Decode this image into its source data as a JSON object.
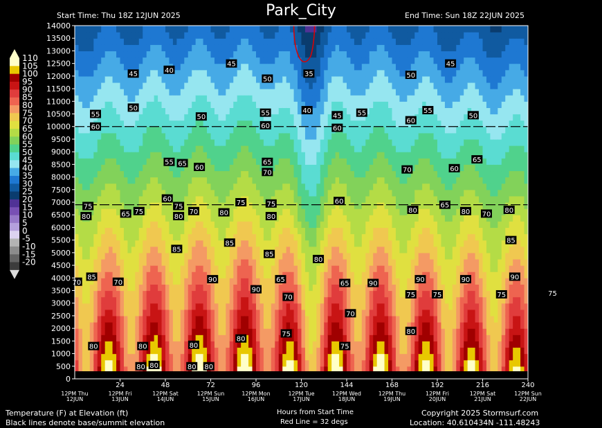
{
  "chart_data": {
    "type": "heatmap",
    "title": "Park_City",
    "start_time": "Start Time: Thu 18Z 12JUN 2025",
    "end_time": "End Time: Sun 18Z 22JUN 2025",
    "xlabel": "Hours from Start Time",
    "ylabel": "Temperature (F) at Elevation (ft)",
    "note_base": "Black lines denote base/summit elevation",
    "note_redline": "Red Line = 32 degs",
    "copyright": "Copyright 2025 Stormsurf.com",
    "location": "Location: 40.610434N   -111.48243",
    "xlim": [
      0,
      240
    ],
    "ylim": [
      0,
      14000
    ],
    "x_ticks": [
      24,
      48,
      72,
      96,
      120,
      144,
      168,
      192,
      216,
      240
    ],
    "y_ticks": [
      0,
      500,
      1000,
      1500,
      2000,
      2500,
      3000,
      3500,
      4000,
      4500,
      5000,
      5500,
      6000,
      6500,
      7000,
      7500,
      8000,
      8500,
      9000,
      9500,
      10000,
      10500,
      11000,
      11500,
      12000,
      12500,
      13000,
      13500,
      14000
    ],
    "day_labels": [
      {
        "x": 0,
        "l1": "12PM Thu",
        "l2": "12JUN"
      },
      {
        "x": 24,
        "l1": "12PM Fri",
        "l2": "13JUN"
      },
      {
        "x": 48,
        "l1": "12PM Sat",
        "l2": "14JUN"
      },
      {
        "x": 72,
        "l1": "12PM Sun",
        "l2": "15JUN"
      },
      {
        "x": 96,
        "l1": "12PM Mon",
        "l2": "16JUN"
      },
      {
        "x": 120,
        "l1": "12PM Tue",
        "l2": "17JUN"
      },
      {
        "x": 144,
        "l1": "12PM Wed",
        "l2": "18JUN"
      },
      {
        "x": 168,
        "l1": "12PM Thu",
        "l2": "19JUN"
      },
      {
        "x": 192,
        "l1": "12PM Fri",
        "l2": "20JUN"
      },
      {
        "x": 216,
        "l1": "12PM Sat",
        "l2": "21JUN"
      },
      {
        "x": 240,
        "l1": "12PM Sun",
        "l2": "22JUN"
      }
    ],
    "base_elevation": 6900,
    "summit_elevation": 10000,
    "colorbar": [
      {
        "label": "110",
        "color": "#ffffc8"
      },
      {
        "label": "105",
        "color": "#e8c800"
      },
      {
        "label": "100",
        "color": "#a00000"
      },
      {
        "label": "95",
        "color": "#c81414"
      },
      {
        "label": "90",
        "color": "#e03c3c"
      },
      {
        "label": "85",
        "color": "#ee6450"
      },
      {
        "label": "80",
        "color": "#f49a64"
      },
      {
        "label": "75",
        "color": "#f0c850"
      },
      {
        "label": "70",
        "color": "#e0e040"
      },
      {
        "label": "65",
        "color": "#b4dc46"
      },
      {
        "label": "60",
        "color": "#82d25a"
      },
      {
        "label": "55",
        "color": "#50d28c"
      },
      {
        "label": "50",
        "color": "#5adcd2"
      },
      {
        "label": "45",
        "color": "#96e6f0"
      },
      {
        "label": "40",
        "color": "#46aae6"
      },
      {
        "label": "35",
        "color": "#1e78d2"
      },
      {
        "label": "30",
        "color": "#105aa0"
      },
      {
        "label": "25",
        "color": "#0a3c6e"
      },
      {
        "label": "20",
        "color": "#503296"
      },
      {
        "label": "15",
        "color": "#7850b4"
      },
      {
        "label": "10",
        "color": "#9678c8"
      },
      {
        "label": "5",
        "color": "#b4a0dc"
      },
      {
        "label": "0",
        "color": "#dcd2f0"
      },
      {
        "label": "-5",
        "color": "#b4b4b4"
      },
      {
        "label": "-10",
        "color": "#8c8c8c"
      },
      {
        "label": "-15",
        "color": "#646464"
      },
      {
        "label": "-20",
        "color": "#3c3c3c"
      }
    ],
    "contour_labels": [
      {
        "x": 35,
        "y": 500,
        "v": "80"
      },
      {
        "x": 1,
        "y": 3850,
        "v": "70"
      },
      {
        "x": 9,
        "y": 4050,
        "v": "85"
      },
      {
        "x": 23,
        "y": 3850,
        "v": "70"
      },
      {
        "x": 62,
        "y": 500,
        "v": "80"
      },
      {
        "x": 71,
        "y": 500,
        "v": "80"
      },
      {
        "x": 10,
        "y": 1300,
        "v": "80"
      },
      {
        "x": 36,
        "y": 1300,
        "v": "80"
      },
      {
        "x": 42,
        "y": 550,
        "v": "80"
      },
      {
        "x": 63,
        "y": 1350,
        "v": "80"
      },
      {
        "x": 88,
        "y": 1600,
        "v": "80"
      },
      {
        "x": 112,
        "y": 1800,
        "v": "75"
      },
      {
        "x": 143,
        "y": 1300,
        "v": "75"
      },
      {
        "x": 178,
        "y": 1900,
        "v": "80"
      },
      {
        "x": 146,
        "y": 2600,
        "v": "70"
      },
      {
        "x": 113,
        "y": 3250,
        "v": "70"
      },
      {
        "x": 178,
        "y": 3350,
        "v": "75"
      },
      {
        "x": 192,
        "y": 3350,
        "v": "75"
      },
      {
        "x": 226,
        "y": 3350,
        "v": "75"
      },
      {
        "x": 253,
        "y": 3400,
        "v": "75"
      },
      {
        "x": 109,
        "y": 3950,
        "v": "65"
      },
      {
        "x": 143,
        "y": 3800,
        "v": "65"
      },
      {
        "x": 158,
        "y": 3800,
        "v": "90"
      },
      {
        "x": 183,
        "y": 3950,
        "v": "90"
      },
      {
        "x": 207,
        "y": 3950,
        "v": "90"
      },
      {
        "x": 233,
        "y": 4050,
        "v": "90"
      },
      {
        "x": 96,
        "y": 3550,
        "v": "90"
      },
      {
        "x": 73,
        "y": 3950,
        "v": "90"
      },
      {
        "x": 54,
        "y": 5150,
        "v": "85"
      },
      {
        "x": 82,
        "y": 5400,
        "v": "85"
      },
      {
        "x": 103,
        "y": 4950,
        "v": "85"
      },
      {
        "x": 129,
        "y": 4750,
        "v": "80"
      },
      {
        "x": 231,
        "y": 5500,
        "v": "85"
      },
      {
        "x": 6,
        "y": 6450,
        "v": "80"
      },
      {
        "x": 27,
        "y": 6550,
        "v": "65"
      },
      {
        "x": 34,
        "y": 6650,
        "v": "75"
      },
      {
        "x": 7,
        "y": 6850,
        "v": "75"
      },
      {
        "x": 55,
        "y": 6450,
        "v": "80"
      },
      {
        "x": 55,
        "y": 6850,
        "v": "75"
      },
      {
        "x": 63,
        "y": 6650,
        "v": "70"
      },
      {
        "x": 79,
        "y": 6600,
        "v": "80"
      },
      {
        "x": 88,
        "y": 7000,
        "v": "75"
      },
      {
        "x": 104,
        "y": 6450,
        "v": "80"
      },
      {
        "x": 104,
        "y": 6950,
        "v": "75"
      },
      {
        "x": 140,
        "y": 7050,
        "v": "60"
      },
      {
        "x": 179,
        "y": 6700,
        "v": "80"
      },
      {
        "x": 196,
        "y": 6900,
        "v": "65"
      },
      {
        "x": 207,
        "y": 6650,
        "v": "80"
      },
      {
        "x": 218,
        "y": 6550,
        "v": "70"
      },
      {
        "x": 230,
        "y": 6700,
        "v": "80"
      },
      {
        "x": 49,
        "y": 7150,
        "v": "60"
      },
      {
        "x": 50,
        "y": 8600,
        "v": "55"
      },
      {
        "x": 57,
        "y": 8550,
        "v": "65"
      },
      {
        "x": 66,
        "y": 8400,
        "v": "60"
      },
      {
        "x": 102,
        "y": 8600,
        "v": "65"
      },
      {
        "x": 102,
        "y": 8200,
        "v": "70"
      },
      {
        "x": 176,
        "y": 8300,
        "v": "70"
      },
      {
        "x": 201,
        "y": 8350,
        "v": "60"
      },
      {
        "x": 213,
        "y": 8700,
        "v": "65"
      },
      {
        "x": 11,
        "y": 10000,
        "v": "60"
      },
      {
        "x": 101,
        "y": 10050,
        "v": "60"
      },
      {
        "x": 139,
        "y": 9950,
        "v": "60"
      },
      {
        "x": 178,
        "y": 10250,
        "v": "60"
      },
      {
        "x": 11,
        "y": 10500,
        "v": "55"
      },
      {
        "x": 31,
        "y": 10750,
        "v": "50"
      },
      {
        "x": 67,
        "y": 10400,
        "v": "50"
      },
      {
        "x": 101,
        "y": 10550,
        "v": "55"
      },
      {
        "x": 123,
        "y": 10650,
        "v": "40"
      },
      {
        "x": 139,
        "y": 10450,
        "v": "45"
      },
      {
        "x": 152,
        "y": 10550,
        "v": "55"
      },
      {
        "x": 187,
        "y": 10650,
        "v": "55"
      },
      {
        "x": 211,
        "y": 10450,
        "v": "50"
      },
      {
        "x": 31,
        "y": 12100,
        "v": "45"
      },
      {
        "x": 50,
        "y": 12250,
        "v": "40"
      },
      {
        "x": 83,
        "y": 12500,
        "v": "45"
      },
      {
        "x": 102,
        "y": 11900,
        "v": "50"
      },
      {
        "x": 124,
        "y": 12100,
        "v": "35"
      },
      {
        "x": 178,
        "y": 12050,
        "v": "50"
      },
      {
        "x": 199,
        "y": 12500,
        "v": "45"
      }
    ]
  }
}
